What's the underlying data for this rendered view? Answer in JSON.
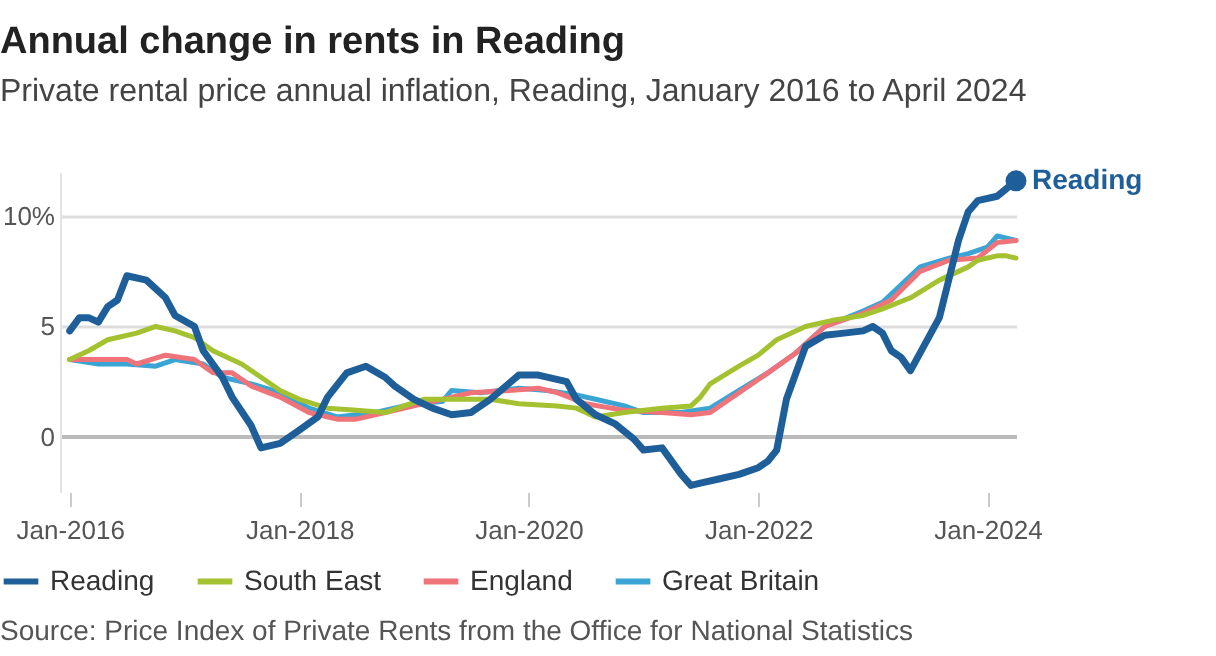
{
  "chart_data": {
    "type": "line",
    "title": "Annual change in rents in Reading",
    "subtitle": "Private rental price annual inflation, Reading, January 2016 to April 2024",
    "xlim": [
      "2015-12",
      "2024-04"
    ],
    "xticks": [
      {
        "value": "2016-01",
        "label": "Jan-2016"
      },
      {
        "value": "2018-01",
        "label": "Jan-2018"
      },
      {
        "value": "2020-01",
        "label": "Jan-2020"
      },
      {
        "value": "2022-01",
        "label": "Jan-2022"
      },
      {
        "value": "2024-01",
        "label": "Jan-2024"
      }
    ],
    "ylim": [
      -2.5,
      12
    ],
    "yticks": [
      0,
      5,
      {
        "value": 10,
        "label": "10%"
      }
    ],
    "grid": "y",
    "legend": "bottom",
    "series": [
      {
        "name": "Reading",
        "color": "#1f5f99",
        "x": [
          "2016-01",
          "2016-02",
          "2016-03",
          "2016-04",
          "2016-05",
          "2016-06",
          "2016-07",
          "2016-09",
          "2016-11",
          "2016-12",
          "2017-02",
          "2017-03",
          "2017-05",
          "2017-06",
          "2017-08",
          "2017-09",
          "2017-11",
          "2018-01",
          "2018-03",
          "2018-04",
          "2018-06",
          "2018-08",
          "2018-10",
          "2018-11",
          "2019-01",
          "2019-03",
          "2019-05",
          "2019-07",
          "2019-09",
          "2019-12",
          "2020-02",
          "2020-05",
          "2020-06",
          "2020-08",
          "2020-10",
          "2020-12",
          "2021-01",
          "2021-03",
          "2021-05",
          "2021-06",
          "2021-07",
          "2021-09",
          "2021-11",
          "2022-01",
          "2022-02",
          "2022-03",
          "2022-04",
          "2022-06",
          "2022-08",
          "2022-10",
          "2022-12",
          "2023-01",
          "2023-02",
          "2023-03",
          "2023-04",
          "2023-05",
          "2023-08",
          "2023-10",
          "2023-11",
          "2023-12",
          "2024-02",
          "2024-04"
        ],
        "values": [
          4.8,
          5.4,
          5.4,
          5.2,
          5.9,
          6.2,
          7.3,
          7.1,
          6.3,
          5.5,
          5.0,
          3.9,
          2.7,
          1.8,
          0.5,
          -0.5,
          -0.3,
          0.3,
          0.9,
          1.8,
          2.9,
          3.2,
          2.7,
          2.3,
          1.7,
          1.3,
          1.0,
          1.1,
          1.7,
          2.8,
          2.8,
          2.5,
          1.7,
          1.0,
          0.6,
          -0.1,
          -0.6,
          -0.5,
          -1.7,
          -2.2,
          -2.1,
          -1.9,
          -1.7,
          -1.4,
          -1.1,
          -0.6,
          1.7,
          4.1,
          4.6,
          4.7,
          4.8,
          5.0,
          4.7,
          3.9,
          3.6,
          3.0,
          5.4,
          8.9,
          10.2,
          10.7,
          10.9,
          11.6
        ]
      },
      {
        "name": "South East",
        "color": "#a4c12f",
        "x": [
          "2016-01",
          "2016-03",
          "2016-05",
          "2016-08",
          "2016-10",
          "2016-12",
          "2017-02",
          "2017-04",
          "2017-07",
          "2017-09",
          "2017-11",
          "2018-01",
          "2018-04",
          "2018-07",
          "2018-10",
          "2018-12",
          "2019-02",
          "2019-05",
          "2019-09",
          "2019-12",
          "2020-04",
          "2020-06",
          "2020-08",
          "2020-11",
          "2021-03",
          "2021-06",
          "2021-07",
          "2021-08",
          "2021-11",
          "2022-01",
          "2022-03",
          "2022-06",
          "2022-09",
          "2022-12",
          "2023-02",
          "2023-05",
          "2023-08",
          "2023-11",
          "2023-12",
          "2024-02",
          "2024-03",
          "2024-04"
        ],
        "values": [
          3.5,
          3.9,
          4.4,
          4.7,
          5.0,
          4.8,
          4.5,
          3.9,
          3.3,
          2.7,
          2.1,
          1.7,
          1.3,
          1.2,
          1.1,
          1.4,
          1.7,
          1.7,
          1.7,
          1.5,
          1.4,
          1.3,
          0.9,
          1.1,
          1.3,
          1.4,
          1.8,
          2.4,
          3.2,
          3.7,
          4.4,
          5.0,
          5.3,
          5.5,
          5.8,
          6.3,
          7.1,
          7.7,
          8.0,
          8.2,
          8.2,
          8.1
        ]
      },
      {
        "name": "England",
        "color": "#f0737a",
        "x": [
          "2016-01",
          "2016-04",
          "2016-07",
          "2016-08",
          "2016-11",
          "2017-02",
          "2017-04",
          "2017-06",
          "2017-08",
          "2017-11",
          "2018-02",
          "2018-05",
          "2018-07",
          "2018-10",
          "2019-01",
          "2019-04",
          "2019-07",
          "2019-11",
          "2020-02",
          "2020-04",
          "2020-07",
          "2020-11",
          "2021-03",
          "2021-06",
          "2021-08",
          "2021-11",
          "2022-02",
          "2022-05",
          "2022-08",
          "2022-12",
          "2023-03",
          "2023-06",
          "2023-09",
          "2023-12",
          "2024-02",
          "2024-04"
        ],
        "values": [
          3.5,
          3.5,
          3.5,
          3.3,
          3.7,
          3.5,
          2.9,
          2.9,
          2.3,
          1.8,
          1.1,
          0.8,
          0.8,
          1.1,
          1.4,
          1.7,
          2.0,
          2.1,
          2.2,
          2.0,
          1.5,
          1.2,
          1.1,
          1.0,
          1.1,
          2.0,
          2.9,
          3.8,
          5.0,
          5.6,
          6.2,
          7.5,
          8.0,
          8.1,
          8.8,
          8.9
        ]
      },
      {
        "name": "Great Britain",
        "color": "#3aa5d4",
        "x": [
          "2016-01",
          "2016-04",
          "2016-07",
          "2016-10",
          "2016-12",
          "2017-03",
          "2017-05",
          "2017-08",
          "2017-11",
          "2018-02",
          "2018-05",
          "2018-09",
          "2019-01",
          "2019-04",
          "2019-05",
          "2019-08",
          "2019-12",
          "2020-03",
          "2020-06",
          "2020-08",
          "2020-11",
          "2021-01",
          "2021-05",
          "2021-08",
          "2021-11",
          "2022-02",
          "2022-05",
          "2022-08",
          "2022-12",
          "2023-02",
          "2023-06",
          "2023-09",
          "2023-11",
          "2024-01",
          "2024-02",
          "2024-04"
        ],
        "values": [
          3.5,
          3.3,
          3.3,
          3.2,
          3.5,
          3.3,
          2.7,
          2.4,
          2.0,
          1.3,
          0.9,
          1.1,
          1.5,
          1.6,
          2.1,
          2.0,
          2.2,
          2.1,
          1.9,
          1.7,
          1.4,
          1.1,
          1.1,
          1.3,
          2.1,
          2.9,
          3.8,
          5.0,
          5.7,
          6.1,
          7.7,
          8.1,
          8.3,
          8.6,
          9.1,
          8.9
        ]
      }
    ],
    "annotations": [
      {
        "text": "Reading",
        "x": "2024-04",
        "y": 11.6
      },
      "Source: Price Index of Private Rents from the Office for National Statistics"
    ]
  }
}
